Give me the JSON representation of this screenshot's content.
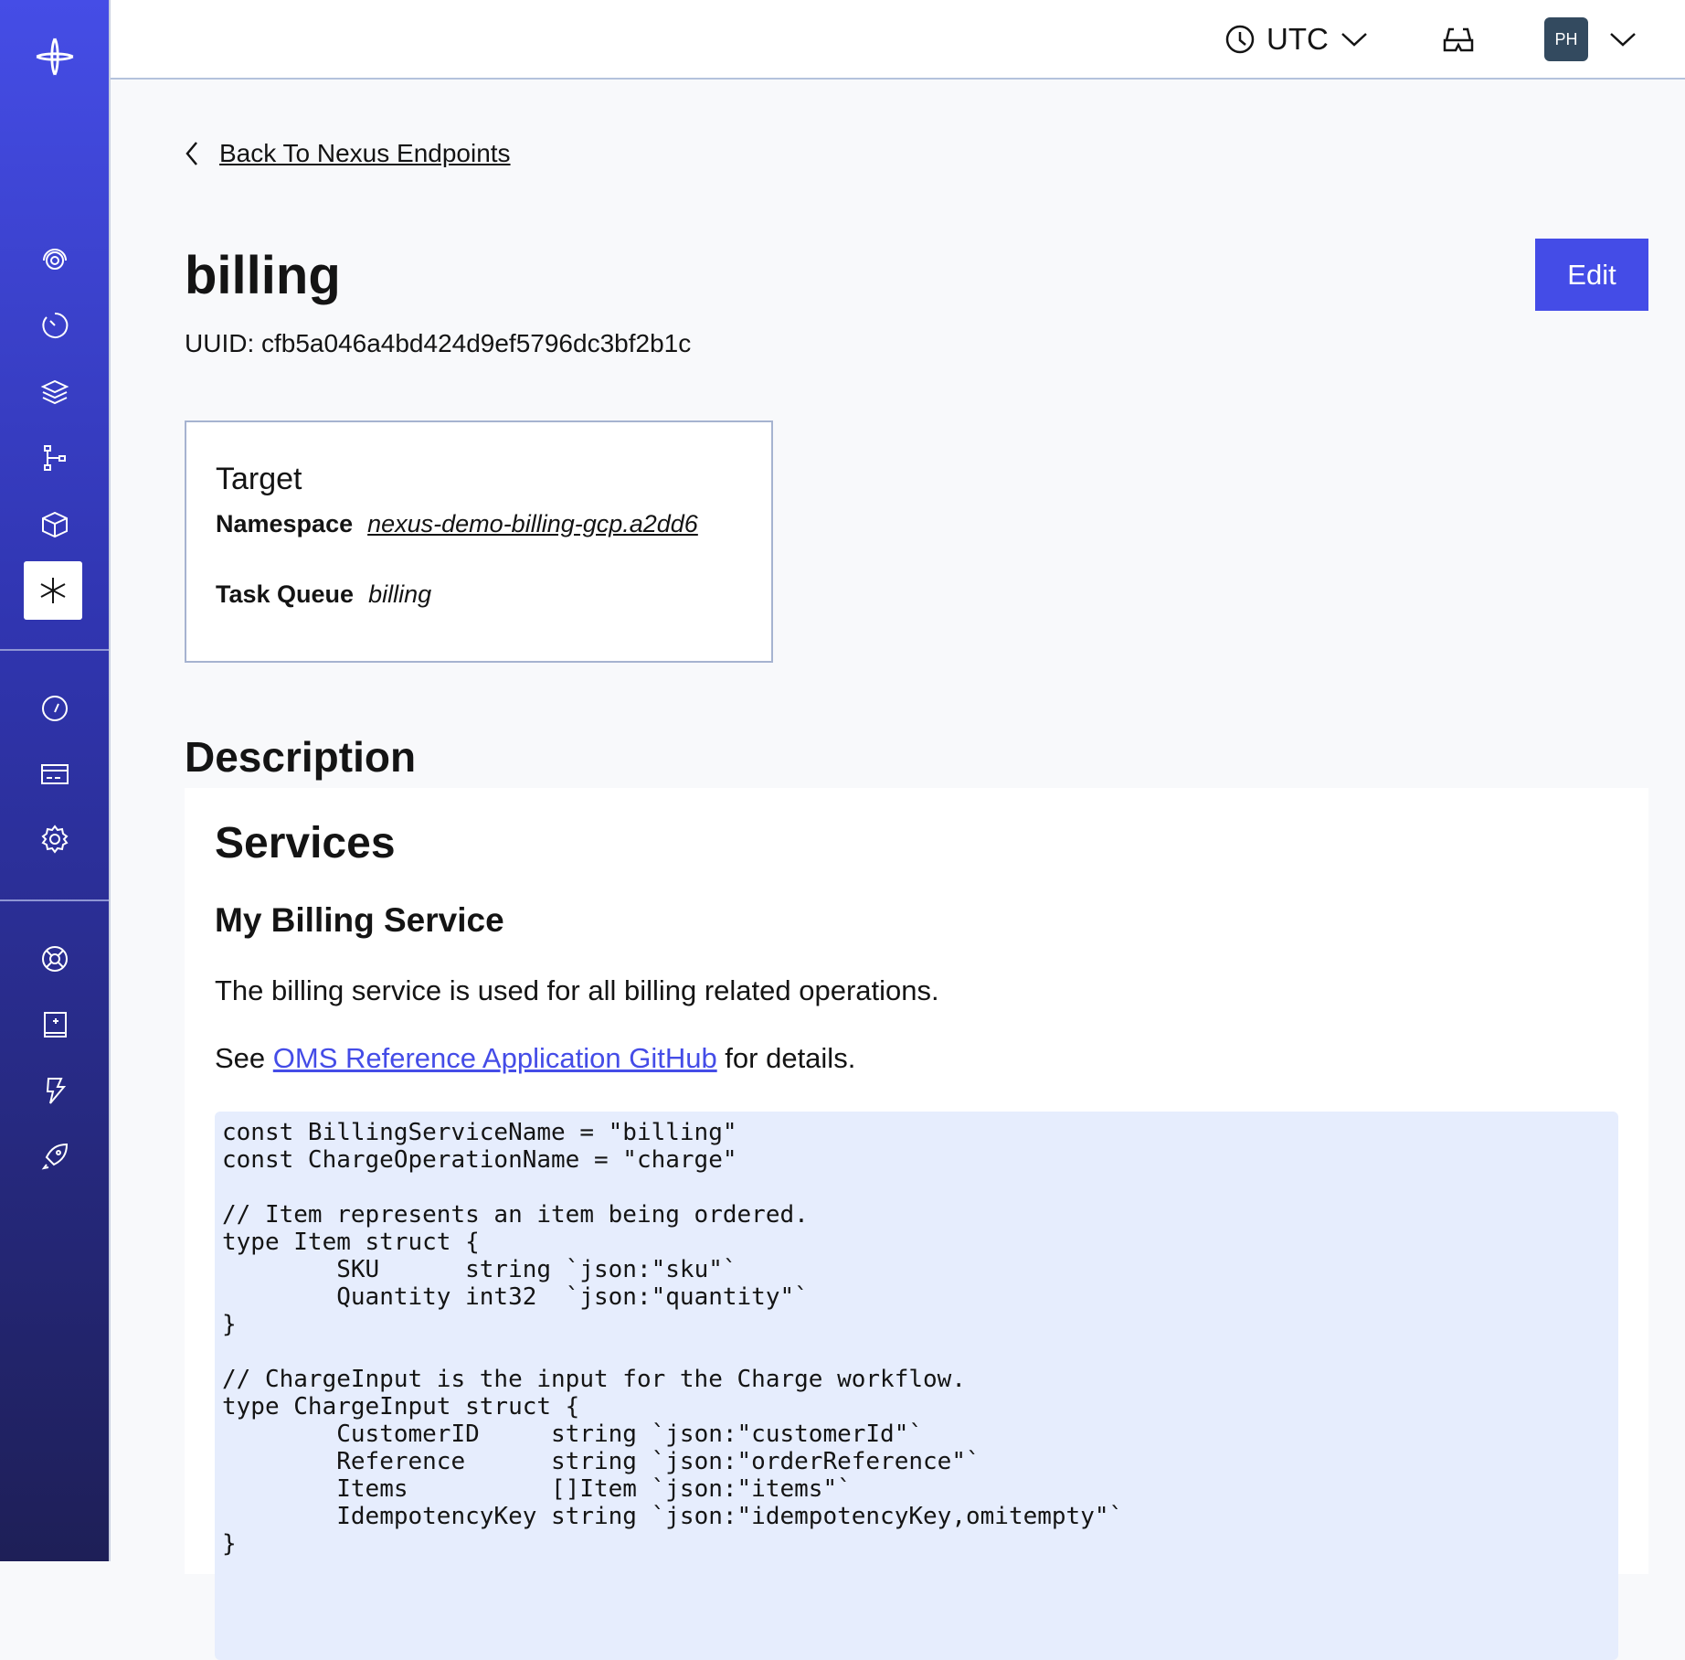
{
  "header": {
    "timezone": "UTC",
    "avatar_initials": "PH"
  },
  "back_link": "Back To Nexus Endpoints",
  "endpoint": {
    "name": "billing",
    "uuid": "UUID: cfb5a046a4bd424d9ef5796dc3bf2b1c",
    "edit_label": "Edit"
  },
  "target": {
    "title": "Target",
    "namespace_label": "Namespace",
    "namespace": "nexus-demo-billing-gcp.a2dd6",
    "task_queue_label": "Task Queue",
    "task_queue": "billing"
  },
  "description": {
    "heading": "Description",
    "h1": "Services",
    "h2": "My Billing Service",
    "para1": "The billing service is used for all billing related operations.",
    "para2_prefix": "See ",
    "link": "OMS Reference Application GitHub",
    "para2_suffix": " for details.",
    "code": "const BillingServiceName = \"billing\"\nconst ChargeOperationName = \"charge\"\n\n// Item represents an item being ordered.\ntype Item struct {\n\tSKU      string `json:\"sku\"`\n\tQuantity int32  `json:\"quantity\"`\n}\n\n// ChargeInput is the input for the Charge workflow.\ntype ChargeInput struct {\n\tCustomerID     string `json:\"customerId\"`\n\tReference      string `json:\"orderReference\"`\n\tItems          []Item `json:\"items\"`\n\tIdempotencyKey string `json:\"idempotencyKey,omitempty\"`\n}"
  },
  "colors": {
    "accent": "#444ce7",
    "sidebar_top": "#454de6",
    "sidebar_bottom": "#1e1f57",
    "code_bg": "#e6edfd"
  }
}
